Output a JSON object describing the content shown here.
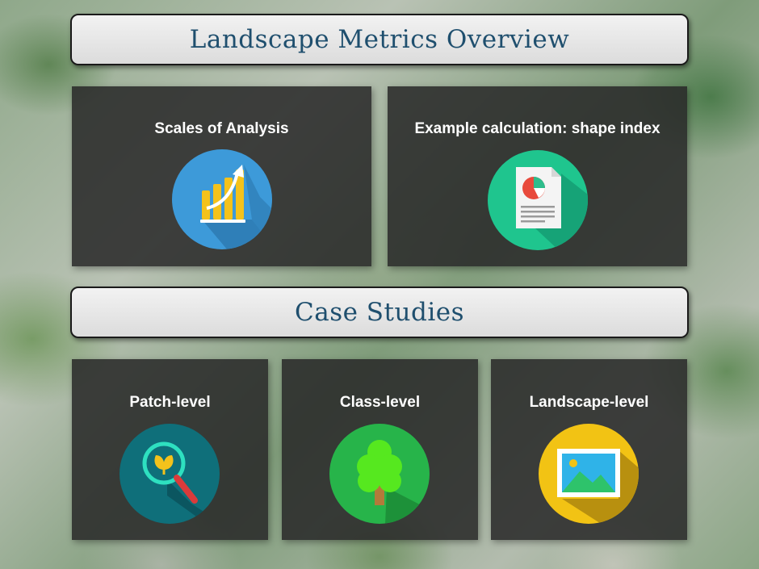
{
  "header": {
    "title": "Landscape Metrics Overview"
  },
  "overview_cards": [
    {
      "label": "Scales of Analysis",
      "icon": "bar-chart-growth-icon"
    },
    {
      "label": "Example calculation: shape index",
      "icon": "pie-chart-document-icon"
    }
  ],
  "case_studies": {
    "title": "Case Studies",
    "cards": [
      {
        "label": "Patch-level",
        "icon": "magnifier-leaf-icon"
      },
      {
        "label": "Class-level",
        "icon": "tree-icon"
      },
      {
        "label": "Landscape-level",
        "icon": "landscape-picture-icon"
      }
    ]
  },
  "colors": {
    "title_text": "#1f4f6e",
    "card_background": "#282828",
    "icon_blue": "#3d9ad9",
    "icon_teal": "#1fc58e",
    "icon_darkteal": "#0f6f7a",
    "icon_green": "#27b44a",
    "icon_yellow": "#f2c314"
  }
}
